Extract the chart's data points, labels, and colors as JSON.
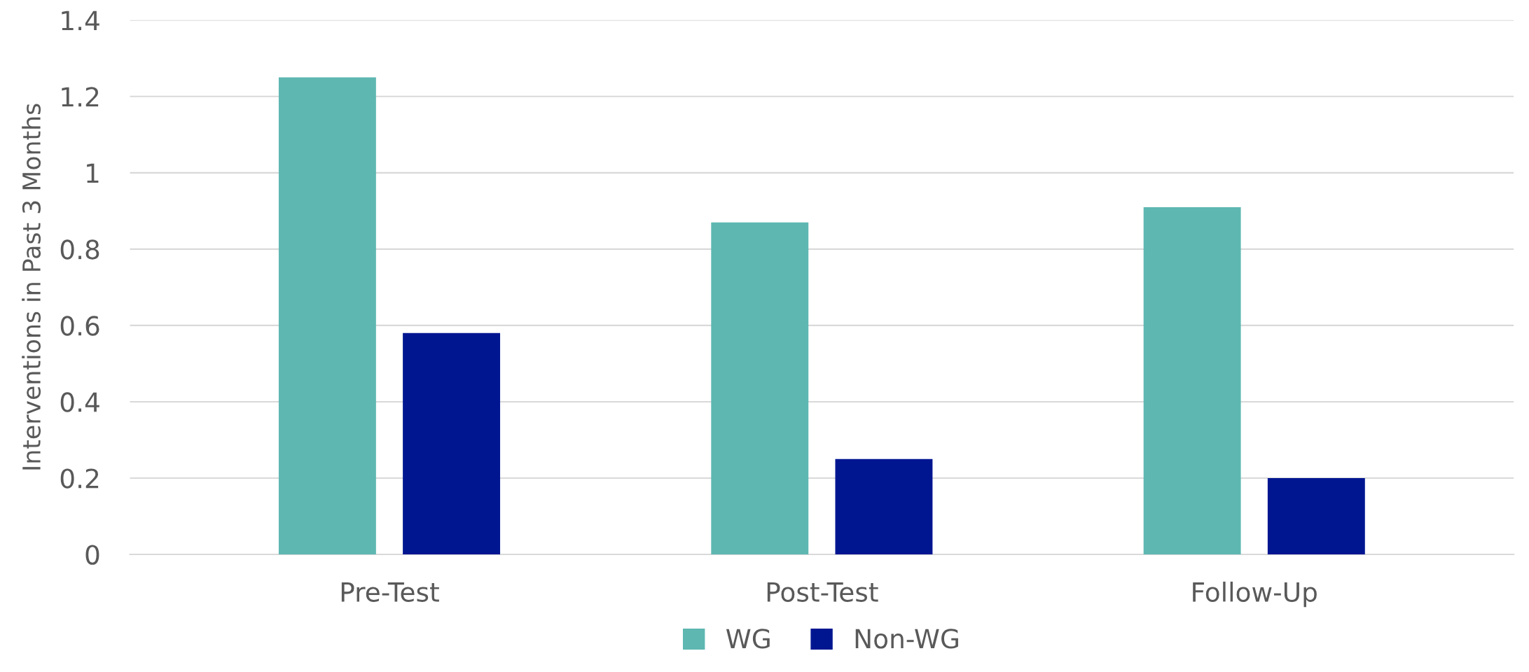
{
  "chart_data": {
    "type": "bar",
    "ylabel": "Interventions in Past 3 Months",
    "categories": [
      "Pre-Test",
      "Post-Test",
      "Follow-Up"
    ],
    "series": [
      {
        "name": "WG",
        "color": "#5eb7b1",
        "values": [
          1.25,
          0.87,
          0.91
        ]
      },
      {
        "name": "Non-WG",
        "color": "#001691",
        "values": [
          0.58,
          0.25,
          0.2
        ]
      }
    ],
    "ylim": [
      0,
      1.4
    ],
    "yticks": [
      0,
      0.2,
      0.4,
      0.6,
      0.8,
      1,
      1.2,
      1.4
    ],
    "grid": "y",
    "legend": "bottom"
  }
}
